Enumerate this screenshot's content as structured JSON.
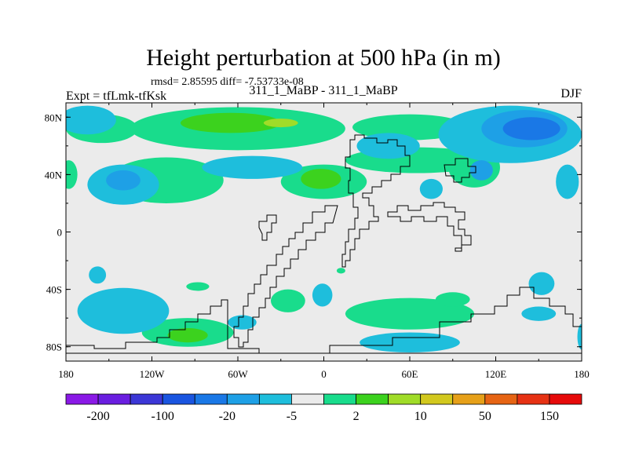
{
  "chart_data": {
    "type": "heatmap",
    "title": "Height perturbation at 500 hPa (in m)",
    "stats_line": "rmsd= 2.85595 diff= -7.53733e-08",
    "center_label": "311_1_MaBP - 311_1_MaBP",
    "left_label": "Expt = tfLmk-tfKsk",
    "right_label": "DJF",
    "x_range": [
      -180,
      180
    ],
    "y_range": [
      -90,
      90
    ],
    "x_ticks": [
      {
        "value": -180,
        "label": "180"
      },
      {
        "value": -120,
        "label": "120W"
      },
      {
        "value": -60,
        "label": "60W"
      },
      {
        "value": 0,
        "label": "0"
      },
      {
        "value": 60,
        "label": "60E"
      },
      {
        "value": 120,
        "label": "120E"
      },
      {
        "value": 180,
        "label": "180"
      }
    ],
    "y_ticks": [
      {
        "value": 80,
        "label": "80N"
      },
      {
        "value": 40,
        "label": "40N"
      },
      {
        "value": 0,
        "label": "0"
      },
      {
        "value": -40,
        "label": "40S"
      },
      {
        "value": -80,
        "label": "80S"
      }
    ],
    "colorbar": {
      "colors": [
        "#8a19e6",
        "#6a1ee0",
        "#3c37d6",
        "#1a55e0",
        "#1a78e6",
        "#1ea0e6",
        "#1ebedc",
        "#ebebeb",
        "#19dc8c",
        "#3cd21e",
        "#a0dc28",
        "#d2c81e",
        "#e6a019",
        "#e66414",
        "#e63214",
        "#e60a0a"
      ],
      "labels": [
        "-200",
        "-100",
        "-20",
        "-5",
        "2",
        "10",
        "50",
        "150"
      ]
    },
    "regions": [
      {
        "level": "positive_small",
        "color": "#19dc8c",
        "lon": -155,
        "lat": 72,
        "rx": 25,
        "ry": 10
      },
      {
        "level": "positive_small",
        "color": "#19dc8c",
        "lon": -60,
        "lat": 72,
        "rx": 75,
        "ry": 15
      },
      {
        "level": "positive_small",
        "color": "#19dc8c",
        "lon": 60,
        "lat": 73,
        "rx": 40,
        "ry": 9
      },
      {
        "level": "positive_small",
        "color": "#19dc8c",
        "lon": -110,
        "lat": 36,
        "rx": 40,
        "ry": 16
      },
      {
        "level": "positive_small",
        "color": "#19dc8c",
        "lon": 65,
        "lat": 50,
        "rx": 50,
        "ry": 9
      },
      {
        "level": "positive_small",
        "color": "#19dc8c",
        "lon": 0,
        "lat": 35,
        "rx": 30,
        "ry": 12
      },
      {
        "level": "positive_small",
        "color": "#19dc8c",
        "lon": 60,
        "lat": -57,
        "rx": 45,
        "ry": 11
      },
      {
        "level": "positive_small",
        "color": "#19dc8c",
        "lon": -25,
        "lat": -48,
        "rx": 12,
        "ry": 8
      },
      {
        "level": "positive_small",
        "color": "#19dc8c",
        "lon": -95,
        "lat": -70,
        "rx": 32,
        "ry": 10
      },
      {
        "level": "positive_small",
        "color": "#19dc8c",
        "lon": -88,
        "lat": -38,
        "rx": 8,
        "ry": 3
      },
      {
        "level": "positive_small",
        "color": "#19dc8c",
        "lon": 105,
        "lat": 45,
        "rx": 18,
        "ry": 14
      },
      {
        "level": "positive_small",
        "color": "#19dc8c",
        "lon": 90,
        "lat": -47,
        "rx": 12,
        "ry": 5
      },
      {
        "level": "positive_small",
        "color": "#19dc8c",
        "lon": -178,
        "lat": 40,
        "rx": 6,
        "ry": 10
      },
      {
        "level": "positive_small",
        "color": "#19dc8c",
        "lon": 12,
        "lat": -27,
        "rx": 3,
        "ry": 2
      },
      {
        "level": "positive",
        "color": "#3cd21e",
        "lon": -65,
        "lat": 76,
        "rx": 35,
        "ry": 7
      },
      {
        "level": "positive",
        "color": "#3cd21e",
        "lon": -2,
        "lat": 37,
        "rx": 14,
        "ry": 7
      },
      {
        "level": "positive",
        "color": "#3cd21e",
        "lon": -95,
        "lat": -72,
        "rx": 14,
        "ry": 5
      },
      {
        "level": "positive_med",
        "color": "#a0dc28",
        "lon": -30,
        "lat": 76,
        "rx": 12,
        "ry": 3
      },
      {
        "level": "negative_small",
        "color": "#1ebedc",
        "lon": -165,
        "lat": 78,
        "rx": 20,
        "ry": 10
      },
      {
        "level": "negative_small",
        "color": "#1ebedc",
        "lon": 130,
        "lat": 68,
        "rx": 50,
        "ry": 20
      },
      {
        "level": "negative_small",
        "color": "#1ebedc",
        "lon": -140,
        "lat": 33,
        "rx": 25,
        "ry": 14
      },
      {
        "level": "negative_small",
        "color": "#1ebedc",
        "lon": -50,
        "lat": 45,
        "rx": 35,
        "ry": 8
      },
      {
        "level": "negative_small",
        "color": "#1ebedc",
        "lon": 45,
        "lat": 60,
        "rx": 22,
        "ry": 9
      },
      {
        "level": "negative_small",
        "color": "#1ebedc",
        "lon": 75,
        "lat": 30,
        "rx": 8,
        "ry": 7
      },
      {
        "level": "negative_small",
        "color": "#1ebedc",
        "lon": 170,
        "lat": 35,
        "rx": 8,
        "ry": 12
      },
      {
        "level": "negative_small",
        "color": "#1ebedc",
        "lon": -140,
        "lat": -55,
        "rx": 32,
        "ry": 16
      },
      {
        "level": "negative_small",
        "color": "#1ebedc",
        "lon": -158,
        "lat": -30,
        "rx": 6,
        "ry": 6
      },
      {
        "level": "negative_small",
        "color": "#1ebedc",
        "lon": -57,
        "lat": -63,
        "rx": 10,
        "ry": 5
      },
      {
        "level": "negative_small",
        "color": "#1ebedc",
        "lon": -1,
        "lat": -44,
        "rx": 7,
        "ry": 8
      },
      {
        "level": "negative_small",
        "color": "#1ebedc",
        "lon": 60,
        "lat": -77,
        "rx": 35,
        "ry": 7
      },
      {
        "level": "negative_small",
        "color": "#1ebedc",
        "lon": 152,
        "lat": -36,
        "rx": 9,
        "ry": 8
      },
      {
        "level": "negative_small",
        "color": "#1ebedc",
        "lon": 150,
        "lat": -57,
        "rx": 12,
        "ry": 5
      },
      {
        "level": "negative_small",
        "color": "#1ebedc",
        "lon": 180,
        "lat": -73,
        "rx": 3,
        "ry": 9
      },
      {
        "level": "negative",
        "color": "#1ea0e6",
        "lon": 140,
        "lat": 72,
        "rx": 30,
        "ry": 13
      },
      {
        "level": "negative",
        "color": "#1ea0e6",
        "lon": -140,
        "lat": 36,
        "rx": 12,
        "ry": 7
      },
      {
        "level": "negative",
        "color": "#1ea0e6",
        "lon": 110,
        "lat": 43,
        "rx": 8,
        "ry": 7
      },
      {
        "level": "negative_med",
        "color": "#1a78e6",
        "lon": 145,
        "lat": 72,
        "rx": 20,
        "ry": 8
      }
    ]
  }
}
